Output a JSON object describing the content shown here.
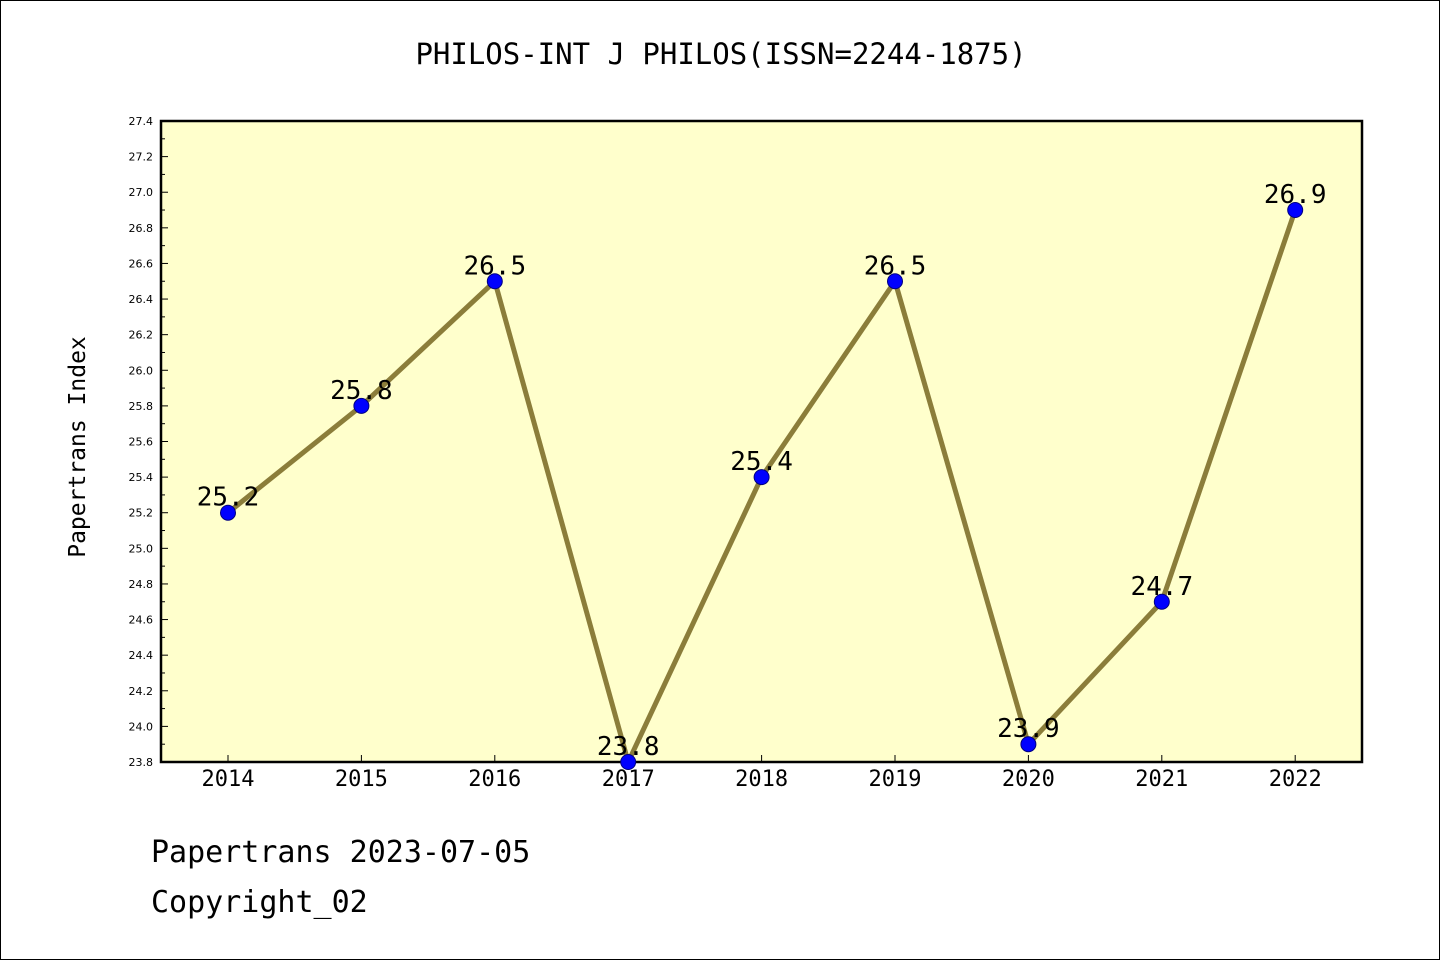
{
  "title": "PHILOS-INT J PHILOS(ISSN=2244-1875)",
  "footer": {
    "date_line": "Papertrans 2023-07-05",
    "copyright_line": "Copyright_02"
  },
  "colors": {
    "plot_background": "#ffffcc",
    "line": "#8b7d3a",
    "marker_fill": "#0000ff",
    "marker_edge": "#000080",
    "axes": "#000000"
  },
  "chart_data": {
    "type": "line",
    "title": "PHILOS-INT J PHILOS(ISSN=2244-1875)",
    "xlabel": "",
    "ylabel": "Papertrans Index",
    "categories": [
      "2014",
      "2015",
      "2016",
      "2017",
      "2018",
      "2019",
      "2020",
      "2021",
      "2022"
    ],
    "series": [
      {
        "values": [
          25.2,
          25.8,
          26.5,
          23.8,
          25.4,
          26.5,
          23.9,
          24.7,
          26.9
        ],
        "labels": [
          "25.2",
          "25.8",
          "26.5",
          "23.8",
          "25.4",
          "26.5",
          "23.9",
          "24.7",
          "26.9"
        ]
      }
    ],
    "ylim": [
      23.8,
      27.4
    ],
    "yticks": [
      "23.8",
      "24.0",
      "24.2",
      "24.4",
      "24.6",
      "24.8",
      "25.0",
      "25.2",
      "25.4",
      "25.6",
      "25.8",
      "26.0",
      "26.2",
      "26.4",
      "26.6",
      "26.8",
      "27.0",
      "27.2",
      "27.4"
    ],
    "grid": false,
    "legend": "none"
  }
}
